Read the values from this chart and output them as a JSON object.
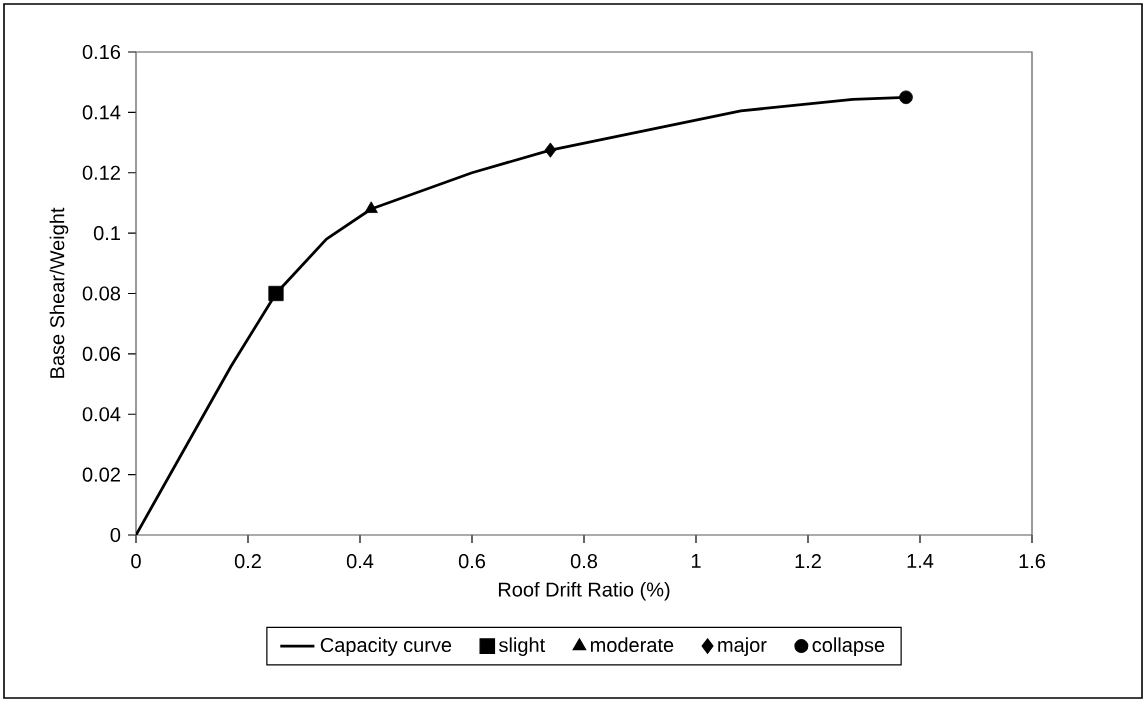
{
  "chart_data": {
    "type": "line",
    "xlabel": "Roof Drift Ratio (%)",
    "ylabel": "Base Shear/Weight",
    "xlim": [
      0,
      1.6
    ],
    "ylim": [
      0,
      0.16
    ],
    "xticks": [
      0,
      0.2,
      0.4,
      0.6,
      0.8,
      1,
      1.2,
      1.4,
      1.6
    ],
    "yticks": [
      0,
      0.02,
      0.04,
      0.06,
      0.08,
      0.1,
      0.12,
      0.14,
      0.16
    ],
    "legend": "bottom",
    "series": [
      {
        "name": "Capacity curve",
        "color": "#000000",
        "marker": "none",
        "x": [
          0,
          0.17,
          0.25,
          0.34,
          0.42,
          0.6,
          0.74,
          1.08,
          1.28,
          1.375
        ],
        "values": [
          0,
          0.056,
          0.08,
          0.098,
          0.108,
          0.12,
          0.1275,
          0.1405,
          0.1443,
          0.145
        ]
      },
      {
        "name": "slight",
        "type": "scatter",
        "color": "#000000",
        "marker": "square",
        "x": [
          0.25
        ],
        "values": [
          0.08
        ]
      },
      {
        "name": "moderate",
        "type": "scatter",
        "color": "#000000",
        "marker": "triangle",
        "x": [
          0.42
        ],
        "values": [
          0.108
        ]
      },
      {
        "name": "major",
        "type": "scatter",
        "color": "#000000",
        "marker": "diamond",
        "x": [
          0.74
        ],
        "values": [
          0.1275
        ]
      },
      {
        "name": "collapse",
        "type": "scatter",
        "color": "#000000",
        "marker": "circle",
        "x": [
          1.375
        ],
        "values": [
          0.145
        ]
      }
    ]
  }
}
